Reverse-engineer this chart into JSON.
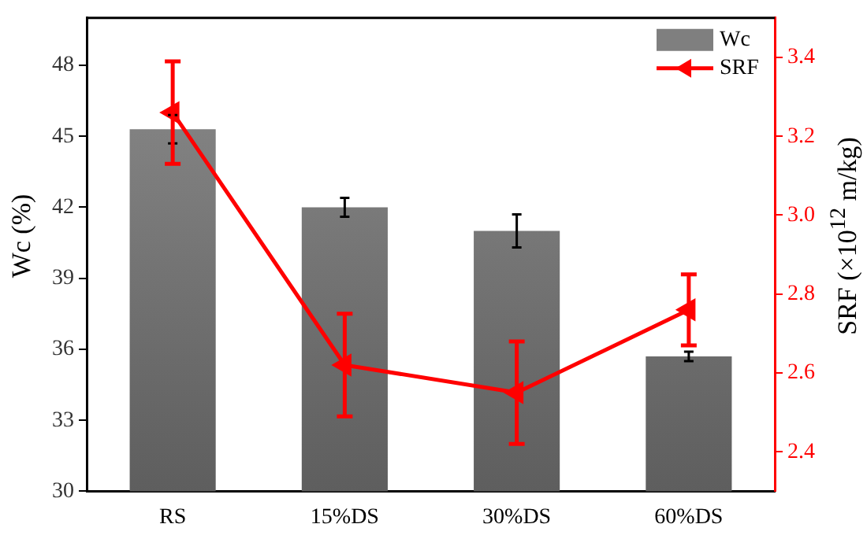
{
  "chart_data": {
    "type": "bar",
    "categories": [
      "RS",
      "15%DS",
      "30%DS",
      "60%DS"
    ],
    "ylabel": "Wc (%)",
    "y2label": "SRF (×10$^{12}$ m/kg)",
    "series": [
      {
        "name": "Wc",
        "type": "bar",
        "color": "#7f7f7f",
        "values": [
          45.3,
          42.0,
          41.0,
          35.7
        ],
        "errors": [
          0.6,
          0.4,
          0.7,
          0.2
        ]
      },
      {
        "name": "SRF",
        "type": "line",
        "axis": "y2",
        "color": "#ff0000",
        "values": [
          3.26,
          2.62,
          2.55,
          2.76
        ],
        "errors": [
          0.13,
          0.13,
          0.13,
          0.09
        ]
      }
    ],
    "ylim": [
      30,
      50
    ],
    "yticks": [
      30,
      33,
      36,
      39,
      42,
      45,
      48
    ],
    "y2lim": [
      2.3,
      3.5
    ],
    "y2ticks": [
      2.4,
      2.6,
      2.8,
      {
        "value": 3,
        "label": "3.0"
      },
      3.2,
      3.4
    ],
    "legend": "top right",
    "marker": "triangle",
    "line_style": "solid",
    "grid": false
  }
}
